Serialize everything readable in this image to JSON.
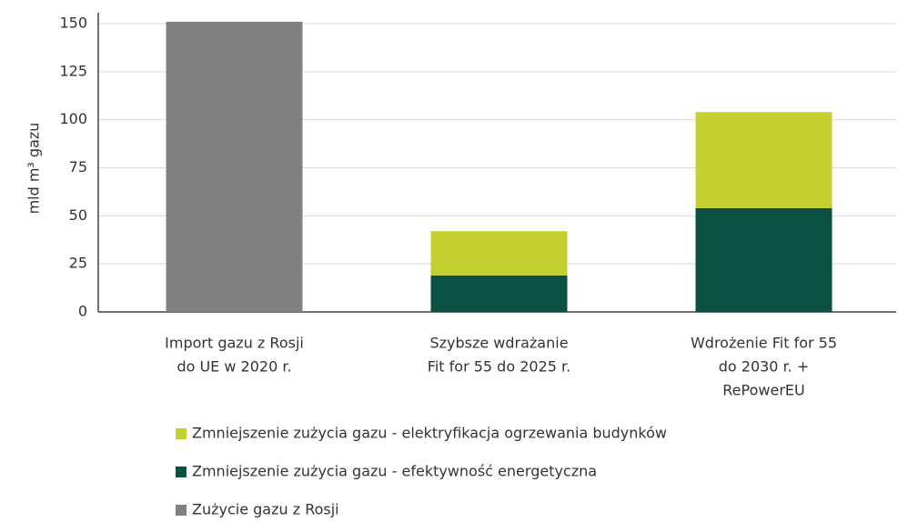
{
  "chart_data": {
    "type": "stacked_bar",
    "y_label": "mld m³ gazu",
    "categories": [
      [
        "Import gazu z Rosji",
        "do UE w 2020 r."
      ],
      [
        "Szybsze wdrażanie",
        "Fit for 55 do 2025 r."
      ],
      [
        "Wdrożenie Fit for 55",
        "do 2030 r. +",
        "RePowerEU"
      ]
    ],
    "series": [
      {
        "name": "Zużycie gazu z Rosji",
        "color": "#808080",
        "values": [
          151,
          null,
          null
        ]
      },
      {
        "name": "Zmniejszenie zużycia gazu - efektywność energetyczna",
        "color": "#0b5040",
        "values": [
          null,
          19,
          54
        ]
      },
      {
        "name": "Zmniejszenie zużycia gazu - elektryfikacja ogrzewania budynków",
        "color": "#c3d02f",
        "values": [
          null,
          23,
          50
        ]
      }
    ],
    "ylim": [
      0,
      150
    ],
    "yticks": [
      0,
      25,
      50,
      75,
      100,
      125,
      150
    ],
    "grid": true
  }
}
